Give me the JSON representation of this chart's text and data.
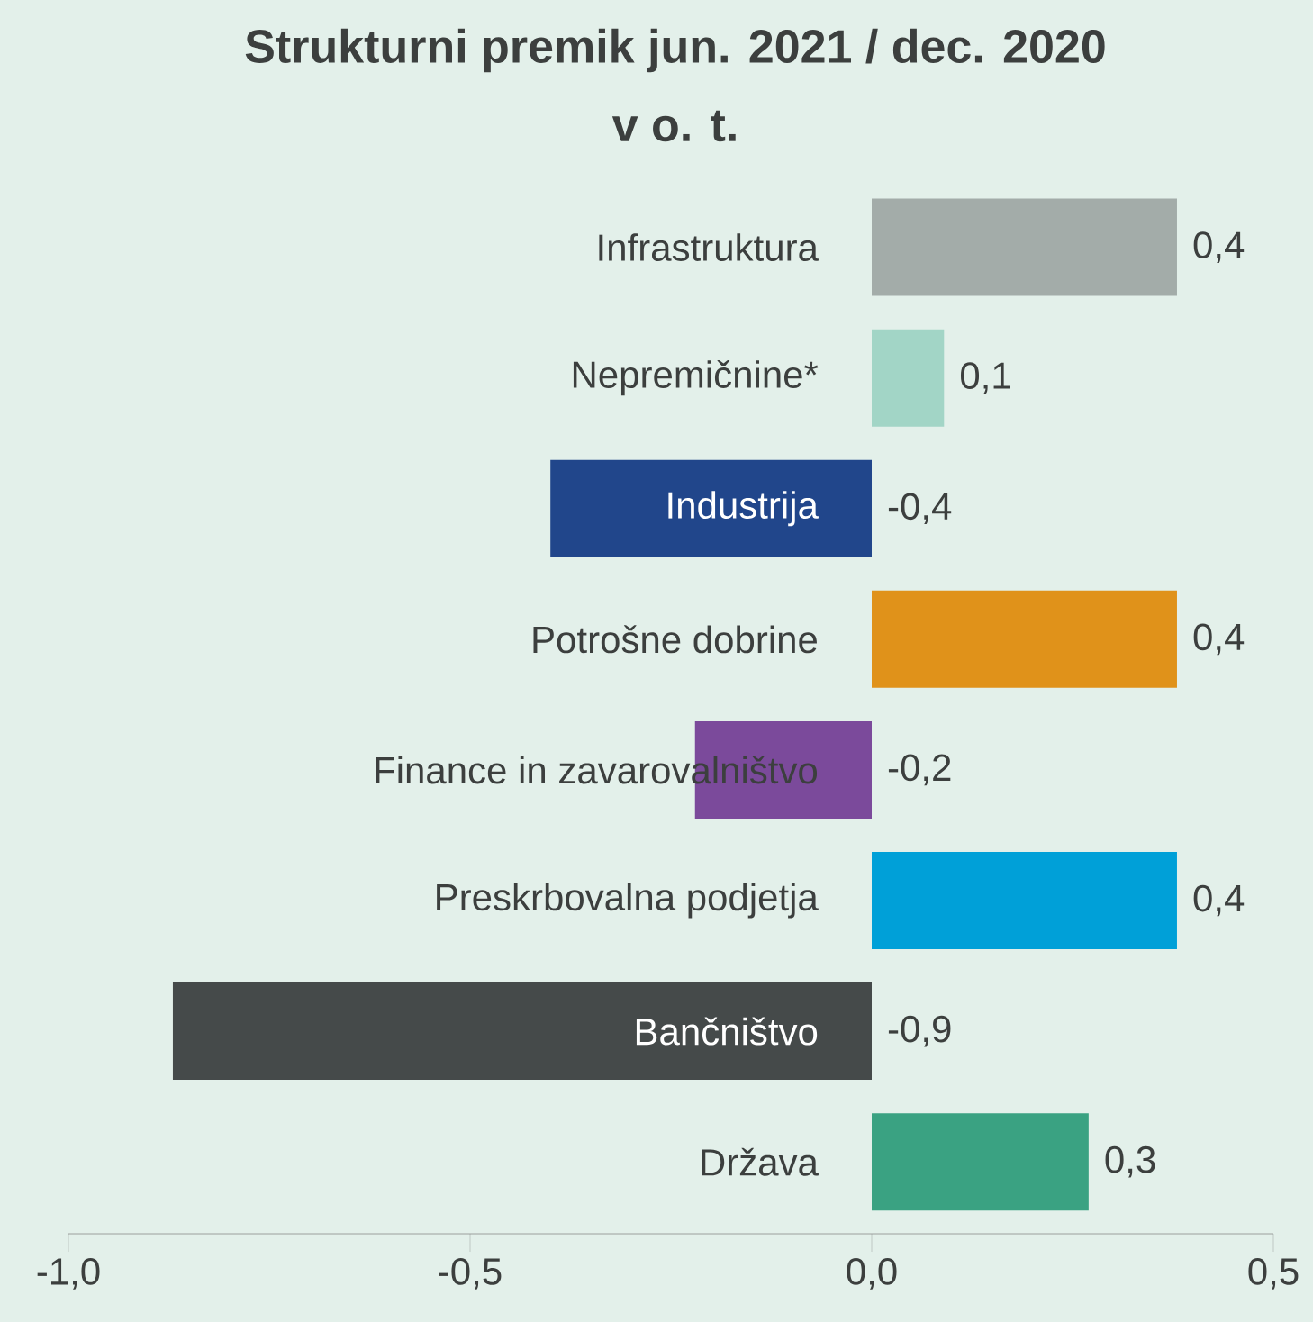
{
  "chart_data": {
    "type": "bar",
    "orientation": "horizontal",
    "title": "Strukturni premik jun. 2021 / dec. 2020",
    "subtitle": "v o. t.",
    "categories": [
      "Infrastruktura",
      "Nepremičnine*",
      "Industrija",
      "Potrošne dobrine",
      "Finance in zavarovalništvo",
      "Preskrbovalna podjetja",
      "Bančništvo",
      "Država"
    ],
    "values": [
      0.38,
      0.09,
      -0.4,
      0.38,
      -0.22,
      0.38,
      -0.87,
      0.27
    ],
    "value_labels": [
      "0,4",
      "0,1",
      "-0,4",
      "0,4",
      "-0,2",
      "0,4",
      "-0,9",
      "0,3"
    ],
    "colors": [
      "#a3aca9",
      "#a2d5c6",
      "#21468b",
      "#e0921a",
      "#7b4a9b",
      "#00a0d8",
      "#454a4a",
      "#3aa282"
    ],
    "xlim": [
      -1.0,
      0.5
    ],
    "xticks": [
      {
        "value": -1.0,
        "label": "-1,0"
      },
      {
        "value": -0.5,
        "label": "-0,5"
      },
      {
        "value": 0.0,
        "label": "0,0"
      },
      {
        "value": 0.5,
        "label": "0,5"
      }
    ]
  }
}
